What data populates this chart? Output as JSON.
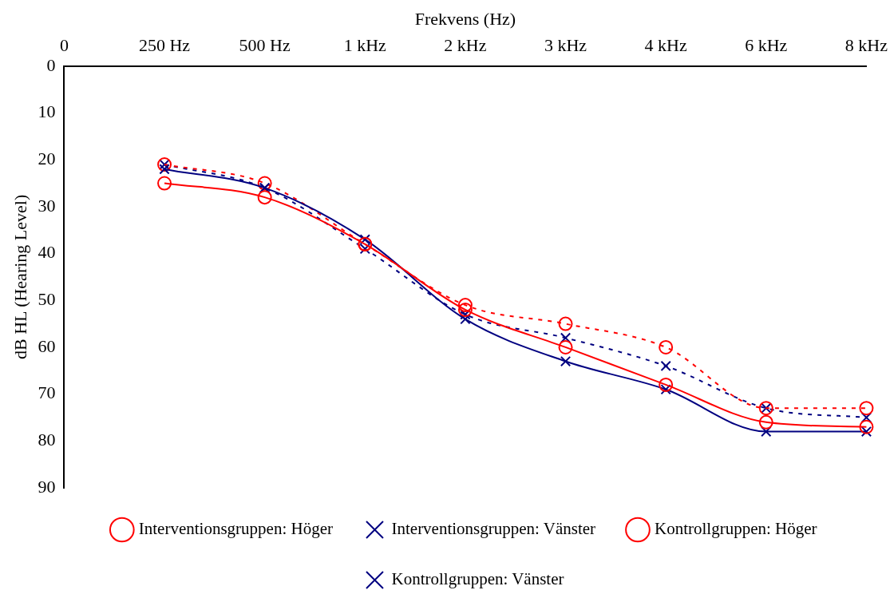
{
  "chart_data": {
    "type": "line",
    "xlabel": "Frekvens (Hz)",
    "ylabel": "dB HL (Hearing Level)",
    "categories": [
      "0",
      "250 Hz",
      "500 Hz",
      "1 kHz",
      "2 kHz",
      "3 kHz",
      "4 kHz",
      "6 kHz",
      "8 kHz"
    ],
    "ylim": [
      90,
      0
    ],
    "yticks": [
      0,
      10,
      20,
      30,
      40,
      50,
      60,
      70,
      80,
      90
    ],
    "grid": false,
    "legend": "bottom",
    "series": [
      {
        "name": "Interventionsgruppen: Höger",
        "color": "#ff0000",
        "marker": "circle",
        "line_style": "solid",
        "values": [
          null,
          25,
          28,
          38,
          52,
          60,
          68,
          76,
          77
        ]
      },
      {
        "name": "Interventionsgruppen: Vänster",
        "color": "#000080",
        "marker": "cross",
        "line_style": "solid",
        "values": [
          null,
          22,
          26,
          37,
          54,
          63,
          69,
          78,
          78
        ]
      },
      {
        "name": "Kontrollgruppen: Höger",
        "color": "#ff0000",
        "marker": "circle",
        "line_style": "dotted",
        "values": [
          null,
          21,
          25,
          38,
          51,
          55,
          60,
          73,
          73
        ]
      },
      {
        "name": "Kontrollgruppen: Vänster",
        "color": "#000080",
        "marker": "cross",
        "line_style": "dotted",
        "values": [
          null,
          21,
          26,
          39,
          53,
          58,
          64,
          73,
          75
        ]
      }
    ]
  }
}
